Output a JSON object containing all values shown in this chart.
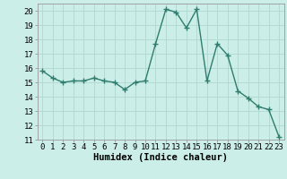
{
  "x": [
    0,
    1,
    2,
    3,
    4,
    5,
    6,
    7,
    8,
    9,
    10,
    11,
    12,
    13,
    14,
    15,
    16,
    17,
    18,
    19,
    20,
    21,
    22,
    23
  ],
  "y": [
    15.8,
    15.3,
    15.0,
    15.1,
    15.1,
    15.3,
    15.1,
    15.0,
    14.5,
    15.0,
    15.1,
    17.7,
    20.1,
    19.9,
    18.8,
    20.1,
    15.1,
    17.7,
    16.9,
    14.4,
    13.9,
    13.3,
    13.1,
    11.2
  ],
  "line_color": "#2e7d6e",
  "marker": "+",
  "marker_size": 4,
  "bg_color": "#cceee8",
  "grid_color": "#b0d8d0",
  "xlabel": "Humidex (Indice chaleur)",
  "xlim": [
    -0.5,
    23.5
  ],
  "ylim": [
    11,
    20.5
  ],
  "yticks": [
    11,
    12,
    13,
    14,
    15,
    16,
    17,
    18,
    19,
    20
  ],
  "xticks": [
    0,
    1,
    2,
    3,
    4,
    5,
    6,
    7,
    8,
    9,
    10,
    11,
    12,
    13,
    14,
    15,
    16,
    17,
    18,
    19,
    20,
    21,
    22,
    23
  ],
  "xlabel_fontsize": 7.5,
  "tick_fontsize": 6.5,
  "line_width": 1.0
}
